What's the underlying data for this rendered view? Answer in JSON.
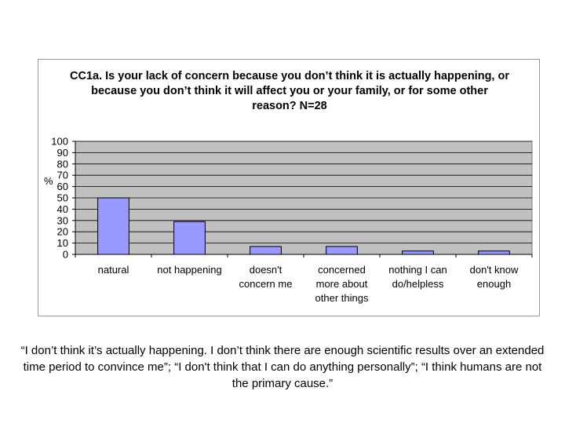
{
  "chart_data": {
    "type": "bar",
    "title": "CC1a. Is your lack of concern because you don’t think it is actually happening, or because you don’t think it will affect you or your family, or for some other reason? N=28",
    "ylabel": "%",
    "xlabel": "",
    "ylim": [
      0,
      100
    ],
    "yticks": [
      0,
      10,
      20,
      30,
      40,
      50,
      60,
      70,
      80,
      90,
      100
    ],
    "categories": [
      [
        "natural"
      ],
      [
        "not happening"
      ],
      [
        "doesn't",
        "concern me"
      ],
      [
        "concerned",
        "more about",
        "other things"
      ],
      [
        "nothing I can",
        "do/helpless"
      ],
      [
        "don't know",
        "enough"
      ]
    ],
    "values": [
      50,
      29,
      7,
      7,
      3,
      3
    ],
    "grid": true,
    "legend": "none",
    "colors": {
      "bar": "#9999ff",
      "bar_stroke": "#000000",
      "plot_bg": "#c0c0c0",
      "grid": "#000000"
    }
  },
  "caption": "“I don’t think it’s actually happening. I don’t think there are enough scientific results over an extended time period to convince me”; “I don't think that I can do anything personally”; “I think humans are not the primary cause.”"
}
